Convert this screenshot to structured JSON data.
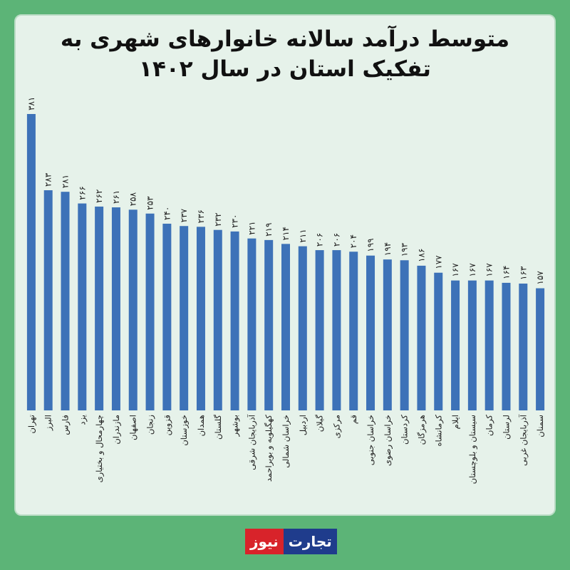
{
  "chart_data": {
    "type": "bar",
    "title": "متوسط درآمد سالانه خانوارهای شهری به تفکیک استان در سال ۱۴۰۲",
    "categories": [
      "تهران",
      "البرز",
      "فارس",
      "یزد",
      "چهارمحال و بختیاری",
      "مازندران",
      "اصفهان",
      "زنجان",
      "قزوین",
      "خوزستان",
      "همدان",
      "گلستان",
      "بوشهر",
      "آذربایجان شرقی",
      "کهگیلویه و بویراحمد",
      "خراسان شمالی",
      "اردبیل",
      "گیلان",
      "مرکزی",
      "قم",
      "خراسان جنوبی",
      "خراسان رضوی",
      "کردستان",
      "هرمزگان",
      "کرمانشاه",
      "ایلام",
      "سیستان و بلوچستان",
      "کرمان",
      "لرستان",
      "آذربایجان غربی",
      "سمنان"
    ],
    "values": [
      381,
      283,
      281,
      266,
      262,
      261,
      258,
      253,
      240,
      237,
      236,
      232,
      230,
      221,
      219,
      214,
      211,
      206,
      206,
      204,
      199,
      194,
      193,
      186,
      177,
      167,
      167,
      167,
      164,
      163,
      157
    ],
    "value_labels": [
      "۳۸۱",
      "۲۸۳",
      "۲۸۱",
      "۲۶۶",
      "۲۶۲",
      "۲۶۱",
      "۲۵۸",
      "۲۵۳",
      "۲۴۰",
      "۲۳۷",
      "۲۳۶",
      "۲۳۲",
      "۲۳۰",
      "۲۲۱",
      "۲۱۹",
      "۲۱۴",
      "۲۱۱",
      "۲۰۶",
      "۲۰۶",
      "۲۰۴",
      "۱۹۹",
      "۱۹۴",
      "۱۹۳",
      "۱۸۶",
      "۱۷۷",
      "۱۶۷",
      "۱۶۷",
      "۱۶۷",
      "۱۶۴",
      "۱۶۳",
      "۱۵۷"
    ],
    "color": "#3d72b8"
  },
  "logo": [
    "تجارت",
    "نیوز"
  ]
}
